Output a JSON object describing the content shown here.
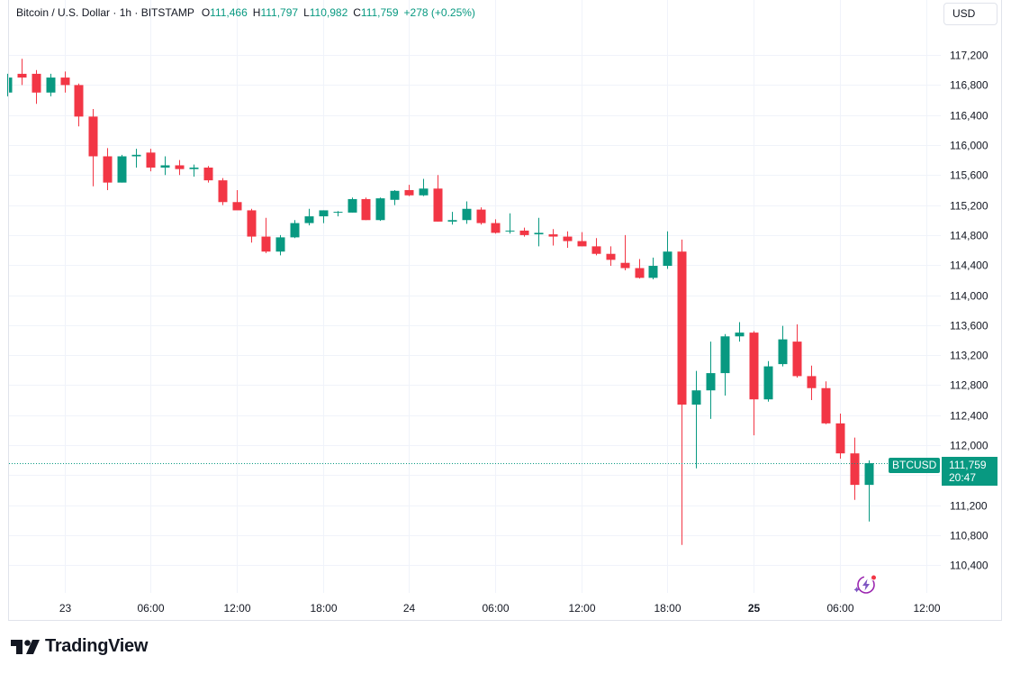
{
  "legend": {
    "symbol": "Bitcoin / U.S. Dollar · 1h · BITSTAMP",
    "open_label": "O",
    "open": "111,466",
    "high_label": "H",
    "high": "111,797",
    "low_label": "L",
    "low": "110,982",
    "close_label": "C",
    "close": "111,759",
    "change": "+278 (+0.25%)"
  },
  "currency": "USD",
  "last_price": {
    "symbol": "BTCUSD",
    "price": "111,759",
    "countdown": "20:47"
  },
  "brand": {
    "name": "TradingView"
  },
  "icons": {
    "snapshot": "lightning-bolt-icon",
    "logo": "tradingview-logo-icon"
  },
  "colors": {
    "up": "#089981",
    "down": "#f23645",
    "grid": "#f0f3fa",
    "axis_text": "#131722"
  },
  "chart_data": {
    "type": "candlestick",
    "symbol": "BTCUSD",
    "interval": "1h",
    "y_axis": {
      "ticks": [
        110400,
        110800,
        111200,
        111600,
        112000,
        112400,
        112800,
        113200,
        113600,
        114000,
        114400,
        114800,
        115200,
        115600,
        116000,
        116400,
        116800,
        117200
      ],
      "labels": [
        "110,400",
        "110,800",
        "111,200",
        "111,600",
        "112,000",
        "112,400",
        "112,800",
        "113,200",
        "113,600",
        "114,000",
        "114,400",
        "114,800",
        "115,200",
        "115,600",
        "116,000",
        "116,400",
        "116,800",
        "117,200"
      ],
      "range": [
        109950,
        117600
      ]
    },
    "x_axis": {
      "ticks": [
        {
          "t": 0,
          "label": "23",
          "bold": false
        },
        {
          "t": 6,
          "label": "06:00",
          "bold": false
        },
        {
          "t": 12,
          "label": "12:00",
          "bold": false
        },
        {
          "t": 18,
          "label": "18:00",
          "bold": false
        },
        {
          "t": 24,
          "label": "24",
          "bold": false
        },
        {
          "t": 30,
          "label": "06:00",
          "bold": false
        },
        {
          "t": 36,
          "label": "12:00",
          "bold": false
        },
        {
          "t": 42,
          "label": "18:00",
          "bold": false
        },
        {
          "t": 48,
          "label": "25",
          "bold": true
        },
        {
          "t": 54,
          "label": "06:00",
          "bold": false
        },
        {
          "t": 60,
          "label": "12:00",
          "bold": false
        }
      ]
    },
    "last_price": 111759,
    "candles": [
      {
        "t": -4,
        "o": 116700,
        "h": 116950,
        "l": 116650,
        "c": 116900
      },
      {
        "t": -3,
        "o": 116950,
        "h": 117150,
        "l": 116800,
        "c": 116900
      },
      {
        "t": -2,
        "o": 116950,
        "h": 117000,
        "l": 116550,
        "c": 116700
      },
      {
        "t": -1,
        "o": 116700,
        "h": 116950,
        "l": 116650,
        "c": 116900
      },
      {
        "t": 0,
        "o": 116900,
        "h": 116980,
        "l": 116700,
        "c": 116800
      },
      {
        "t": 1,
        "o": 116800,
        "h": 116820,
        "l": 116250,
        "c": 116380
      },
      {
        "t": 2,
        "o": 116380,
        "h": 116480,
        "l": 115450,
        "c": 115850
      },
      {
        "t": 3,
        "o": 115850,
        "h": 115960,
        "l": 115400,
        "c": 115500
      },
      {
        "t": 4,
        "o": 115500,
        "h": 115870,
        "l": 115500,
        "c": 115850
      },
      {
        "t": 5,
        "o": 115850,
        "h": 115950,
        "l": 115700,
        "c": 115870
      },
      {
        "t": 6,
        "o": 115900,
        "h": 115950,
        "l": 115650,
        "c": 115700
      },
      {
        "t": 7,
        "o": 115700,
        "h": 115850,
        "l": 115600,
        "c": 115730
      },
      {
        "t": 8,
        "o": 115730,
        "h": 115800,
        "l": 115600,
        "c": 115680
      },
      {
        "t": 9,
        "o": 115680,
        "h": 115740,
        "l": 115580,
        "c": 115700
      },
      {
        "t": 10,
        "o": 115700,
        "h": 115720,
        "l": 115500,
        "c": 115530
      },
      {
        "t": 11,
        "o": 115530,
        "h": 115560,
        "l": 115200,
        "c": 115240
      },
      {
        "t": 12,
        "o": 115240,
        "h": 115400,
        "l": 115150,
        "c": 115130
      },
      {
        "t": 13,
        "o": 115130,
        "h": 115150,
        "l": 114700,
        "c": 114780
      },
      {
        "t": 14,
        "o": 114780,
        "h": 115030,
        "l": 114560,
        "c": 114580
      },
      {
        "t": 15,
        "o": 114580,
        "h": 114800,
        "l": 114530,
        "c": 114770
      },
      {
        "t": 16,
        "o": 114770,
        "h": 115000,
        "l": 114760,
        "c": 114960
      },
      {
        "t": 17,
        "o": 114960,
        "h": 115150,
        "l": 114930,
        "c": 115050
      },
      {
        "t": 18,
        "o": 115050,
        "h": 115130,
        "l": 114960,
        "c": 115130
      },
      {
        "t": 19,
        "o": 115100,
        "h": 115120,
        "l": 115050,
        "c": 115110
      },
      {
        "t": 20,
        "o": 115100,
        "h": 115300,
        "l": 115100,
        "c": 115280
      },
      {
        "t": 21,
        "o": 115280,
        "h": 115300,
        "l": 115000,
        "c": 115000
      },
      {
        "t": 22,
        "o": 115000,
        "h": 115300,
        "l": 114990,
        "c": 115290
      },
      {
        "t": 23,
        "o": 115270,
        "h": 115400,
        "l": 115200,
        "c": 115390
      },
      {
        "t": 24,
        "o": 115400,
        "h": 115470,
        "l": 115320,
        "c": 115330
      },
      {
        "t": 25,
        "o": 115330,
        "h": 115550,
        "l": 115320,
        "c": 115420
      },
      {
        "t": 26,
        "o": 115420,
        "h": 115600,
        "l": 114980,
        "c": 114980
      },
      {
        "t": 27,
        "o": 114980,
        "h": 115110,
        "l": 114940,
        "c": 115000
      },
      {
        "t": 28,
        "o": 115000,
        "h": 115250,
        "l": 114950,
        "c": 115150
      },
      {
        "t": 29,
        "o": 115140,
        "h": 115170,
        "l": 114940,
        "c": 114960
      },
      {
        "t": 30,
        "o": 114960,
        "h": 115010,
        "l": 114820,
        "c": 114830
      },
      {
        "t": 31,
        "o": 114850,
        "h": 115090,
        "l": 114820,
        "c": 114860
      },
      {
        "t": 32,
        "o": 114860,
        "h": 114900,
        "l": 114780,
        "c": 114800
      },
      {
        "t": 33,
        "o": 114810,
        "h": 115030,
        "l": 114650,
        "c": 114830
      },
      {
        "t": 34,
        "o": 114810,
        "h": 114880,
        "l": 114660,
        "c": 114780
      },
      {
        "t": 35,
        "o": 114780,
        "h": 114850,
        "l": 114630,
        "c": 114720
      },
      {
        "t": 36,
        "o": 114720,
        "h": 114840,
        "l": 114650,
        "c": 114650
      },
      {
        "t": 37,
        "o": 114650,
        "h": 114760,
        "l": 114530,
        "c": 114550
      },
      {
        "t": 38,
        "o": 114550,
        "h": 114650,
        "l": 114390,
        "c": 114470
      },
      {
        "t": 39,
        "o": 114430,
        "h": 114800,
        "l": 114330,
        "c": 114360
      },
      {
        "t": 40,
        "o": 114360,
        "h": 114480,
        "l": 114220,
        "c": 114230
      },
      {
        "t": 41,
        "o": 114230,
        "h": 114500,
        "l": 114210,
        "c": 114390
      },
      {
        "t": 42,
        "o": 114390,
        "h": 114850,
        "l": 114350,
        "c": 114580
      },
      {
        "t": 43,
        "o": 114580,
        "h": 114740,
        "l": 110670,
        "c": 112540
      },
      {
        "t": 44,
        "o": 112540,
        "h": 112990,
        "l": 111690,
        "c": 112730
      },
      {
        "t": 45,
        "o": 112730,
        "h": 113380,
        "l": 112350,
        "c": 112960
      },
      {
        "t": 46,
        "o": 112960,
        "h": 113480,
        "l": 112660,
        "c": 113450
      },
      {
        "t": 47,
        "o": 113450,
        "h": 113640,
        "l": 113380,
        "c": 113500
      },
      {
        "t": 48,
        "o": 113500,
        "h": 113520,
        "l": 112130,
        "c": 112610
      },
      {
        "t": 49,
        "o": 112610,
        "h": 113120,
        "l": 112580,
        "c": 113050
      },
      {
        "t": 50,
        "o": 113080,
        "h": 113590,
        "l": 113050,
        "c": 113410
      },
      {
        "t": 51,
        "o": 113380,
        "h": 113610,
        "l": 112900,
        "c": 112920
      },
      {
        "t": 52,
        "o": 112920,
        "h": 113060,
        "l": 112600,
        "c": 112760
      },
      {
        "t": 53,
        "o": 112760,
        "h": 112850,
        "l": 112280,
        "c": 112290
      },
      {
        "t": 54,
        "o": 112290,
        "h": 112420,
        "l": 111820,
        "c": 111890
      },
      {
        "t": 55,
        "o": 111890,
        "h": 112100,
        "l": 111270,
        "c": 111470
      },
      {
        "t": 56,
        "o": 111470,
        "h": 111797,
        "l": 110982,
        "c": 111759
      }
    ]
  }
}
